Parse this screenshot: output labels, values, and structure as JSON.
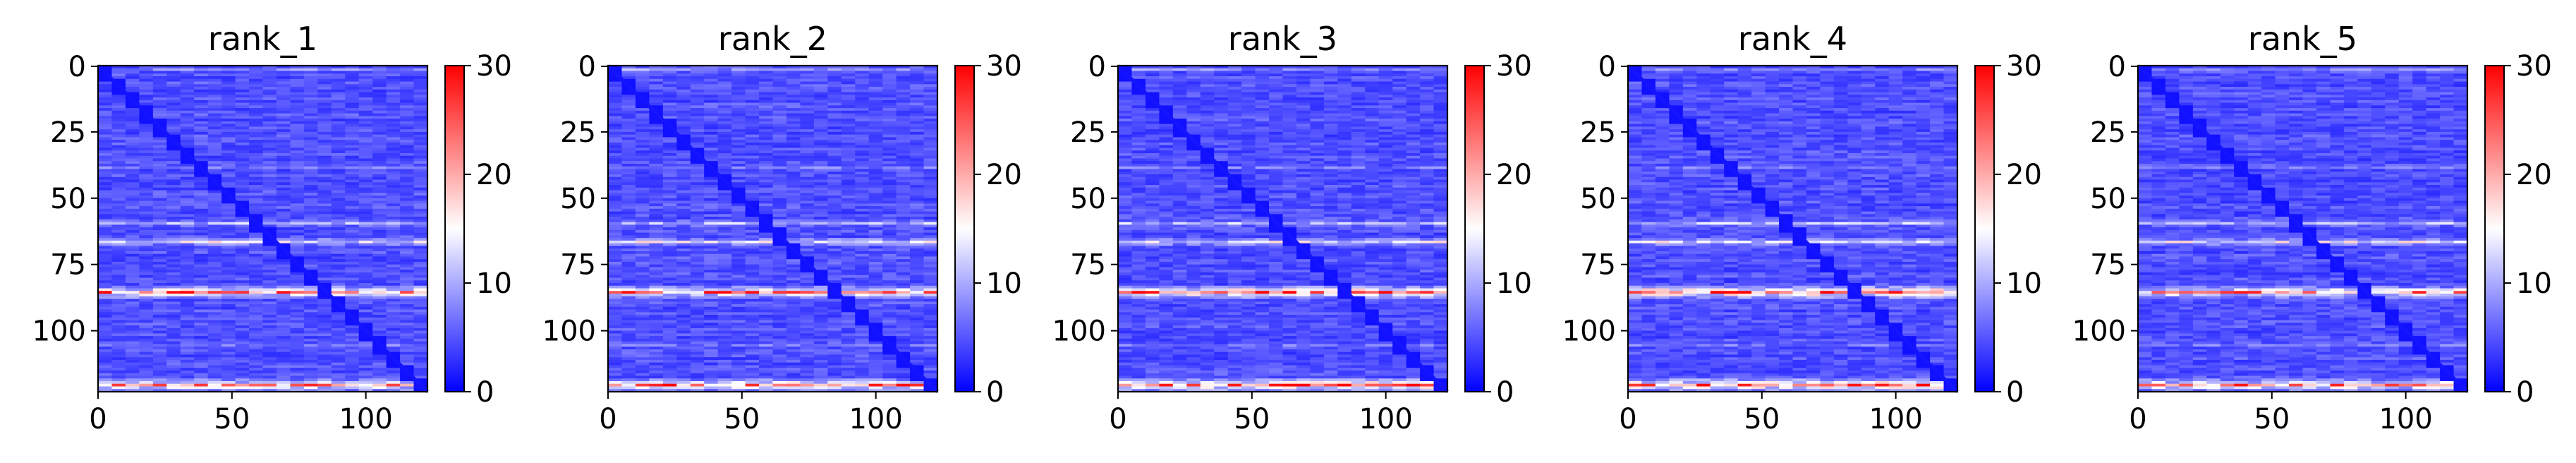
{
  "chart_data": [
    {
      "type": "heatmap",
      "title": "rank_1",
      "x_ticks": [
        "0",
        "50",
        "100"
      ],
      "y_ticks": [
        "0",
        "25",
        "50",
        "75",
        "100"
      ],
      "xlim": [
        0,
        123
      ],
      "ylim": [
        123,
        0
      ],
      "colorbar": {
        "ticks": [
          "0",
          "10",
          "20",
          "30"
        ],
        "range": [
          0,
          30
        ],
        "colormap": "bwr"
      },
      "features": {
        "bright_rows": [
          {
            "row": 85,
            "level": 26
          },
          {
            "row": 66,
            "level": 15
          },
          {
            "row": 59,
            "level": 12
          },
          {
            "row": 120,
            "level": 24
          },
          {
            "row": 1,
            "level": 9
          },
          {
            "row": 38,
            "level": 8
          },
          {
            "row": 105,
            "level": 8
          }
        ],
        "diagonal": true
      }
    },
    {
      "type": "heatmap",
      "title": "rank_2",
      "x_ticks": [
        "0",
        "50",
        "100"
      ],
      "y_ticks": [
        "0",
        "25",
        "50",
        "75",
        "100"
      ],
      "xlim": [
        0,
        123
      ],
      "ylim": [
        123,
        0
      ],
      "colorbar": {
        "ticks": [
          "0",
          "10",
          "20",
          "30"
        ],
        "range": [
          0,
          30
        ],
        "colormap": "bwr"
      },
      "features": {
        "bright_rows": [
          {
            "row": 85,
            "level": 25
          },
          {
            "row": 66,
            "level": 15
          },
          {
            "row": 59,
            "level": 12
          },
          {
            "row": 120,
            "level": 25
          },
          {
            "row": 1,
            "level": 10
          },
          {
            "row": 38,
            "level": 8
          },
          {
            "row": 105,
            "level": 8
          }
        ],
        "diagonal": true
      }
    },
    {
      "type": "heatmap",
      "title": "rank_3",
      "x_ticks": [
        "0",
        "50",
        "100"
      ],
      "y_ticks": [
        "0",
        "25",
        "50",
        "75",
        "100"
      ],
      "xlim": [
        0,
        123
      ],
      "ylim": [
        123,
        0
      ],
      "colorbar": {
        "ticks": [
          "0",
          "10",
          "20",
          "30"
        ],
        "range": [
          0,
          30
        ],
        "colormap": "bwr"
      },
      "features": {
        "bright_rows": [
          {
            "row": 85,
            "level": 27
          },
          {
            "row": 66,
            "level": 15
          },
          {
            "row": 59,
            "level": 12
          },
          {
            "row": 120,
            "level": 27
          },
          {
            "row": 1,
            "level": 9
          },
          {
            "row": 38,
            "level": 8
          },
          {
            "row": 105,
            "level": 8
          }
        ],
        "diagonal": true
      }
    },
    {
      "type": "heatmap",
      "title": "rank_4",
      "x_ticks": [
        "0",
        "50",
        "100"
      ],
      "y_ticks": [
        "0",
        "25",
        "50",
        "75",
        "100"
      ],
      "xlim": [
        0,
        123
      ],
      "ylim": [
        123,
        0
      ],
      "colorbar": {
        "ticks": [
          "0",
          "10",
          "20",
          "30"
        ],
        "range": [
          0,
          30
        ],
        "colormap": "bwr"
      },
      "features": {
        "bright_rows": [
          {
            "row": 85,
            "level": 28
          },
          {
            "row": 66,
            "level": 15
          },
          {
            "row": 59,
            "level": 12
          },
          {
            "row": 120,
            "level": 27
          },
          {
            "row": 1,
            "level": 9
          },
          {
            "row": 38,
            "level": 8
          },
          {
            "row": 105,
            "level": 8
          }
        ],
        "diagonal": true
      }
    },
    {
      "type": "heatmap",
      "title": "rank_5",
      "x_ticks": [
        "0",
        "50",
        "100"
      ],
      "y_ticks": [
        "0",
        "25",
        "50",
        "75",
        "100"
      ],
      "xlim": [
        0,
        123
      ],
      "ylim": [
        123,
        0
      ],
      "colorbar": {
        "ticks": [
          "0",
          "10",
          "20",
          "30"
        ],
        "range": [
          0,
          30
        ],
        "colormap": "bwr"
      },
      "features": {
        "bright_rows": [
          {
            "row": 85,
            "level": 24
          },
          {
            "row": 66,
            "level": 15
          },
          {
            "row": 59,
            "level": 12
          },
          {
            "row": 120,
            "level": 24
          },
          {
            "row": 1,
            "level": 9
          },
          {
            "row": 38,
            "level": 8
          },
          {
            "row": 105,
            "level": 8
          }
        ],
        "diagonal": true
      }
    }
  ]
}
